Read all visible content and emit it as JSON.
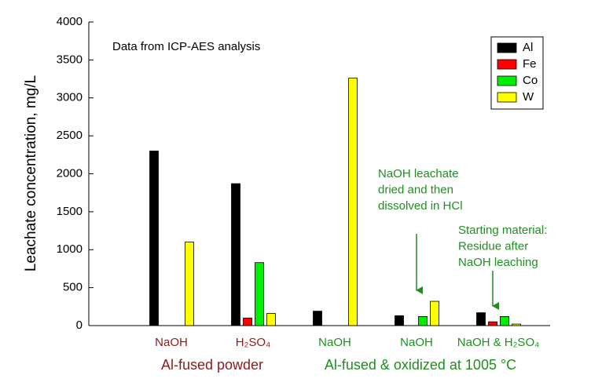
{
  "chart_data": {
    "type": "bar",
    "ylabel": "Leachate concentration, mg/L",
    "categories": [
      "NaOH",
      "H₂SO₄",
      "NaOH",
      "NaOH",
      "NaOH & H₂SO₄"
    ],
    "category_colors": [
      "#8b1c1c",
      "#8b1c1c",
      "#1e8f1e",
      "#1e8f1e",
      "#1e8f1e"
    ],
    "group_labels": [
      {
        "text": "Al-fused powder",
        "color": "#8b1c1c"
      },
      {
        "text": "Al-fused & oxidized at 1005 °C",
        "color": "#1e8f1e"
      }
    ],
    "series": [
      {
        "name": "Al",
        "color": "#000000",
        "values": [
          2300,
          1870,
          190,
          130,
          170
        ]
      },
      {
        "name": "Fe",
        "color": "#ff0000",
        "values": [
          0,
          100,
          0,
          0,
          50
        ]
      },
      {
        "name": "Co",
        "color": "#00ee00",
        "values": [
          0,
          830,
          0,
          120,
          120
        ]
      },
      {
        "name": "W",
        "color": "#ffff00",
        "values": [
          1100,
          160,
          3260,
          320,
          20
        ]
      }
    ],
    "ylim": [
      0,
      4000
    ],
    "yticks": [
      0,
      500,
      1000,
      1500,
      2000,
      2500,
      3000,
      3500,
      4000
    ],
    "legend": "upper right",
    "annotations": [
      {
        "lines": [
          "Data from ICP-AES analysis"
        ],
        "color": "#000000"
      },
      {
        "lines": [
          "NaOH leachate",
          "dried and then",
          "dissolved in HCl"
        ],
        "color": "#1e8f1e"
      },
      {
        "lines": [
          "Starting material:",
          "Residue after",
          "NaOH leaching"
        ],
        "color": "#1e8f1e"
      }
    ]
  }
}
